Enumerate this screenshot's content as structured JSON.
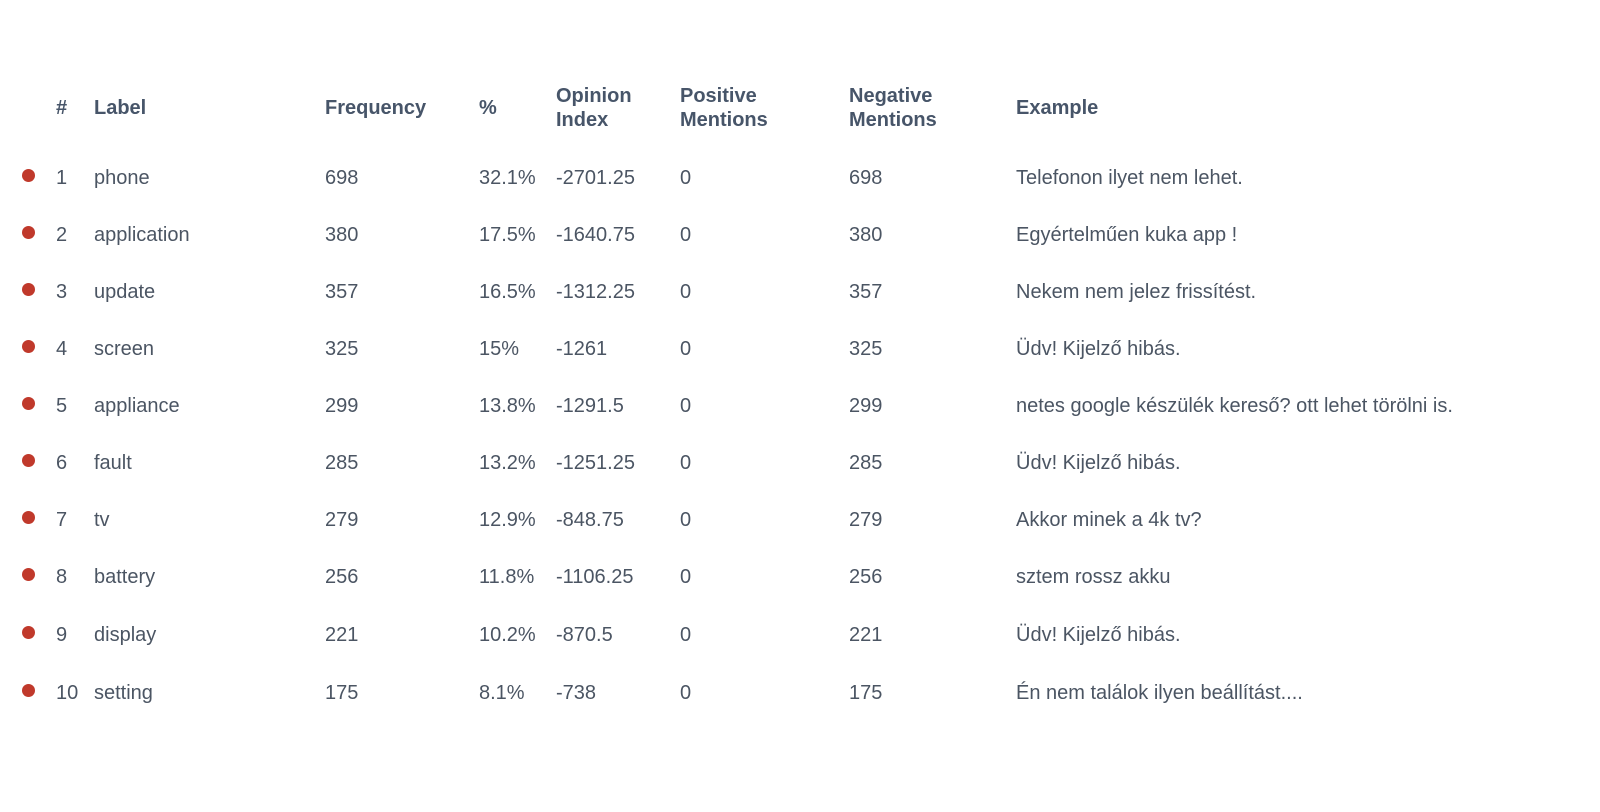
{
  "colors": {
    "sentiment_negative": "#c0392b",
    "text": "#475569"
  },
  "table": {
    "headers": {
      "index": "#",
      "label": "Label",
      "frequency": "Frequency",
      "percent": "%",
      "opinion_index_line1": "Opinion",
      "opinion_index_line2": "Index",
      "positive_line1": "Positive",
      "positive_line2": "Mentions",
      "negative_line1": "Negative",
      "negative_line2": "Mentions",
      "example": "Example"
    },
    "rows": [
      {
        "index": "1",
        "label": "phone",
        "frequency": "698",
        "percent": "32.1%",
        "opinion_index": "-2701.25",
        "positive": "0",
        "negative": "698",
        "example": "Telefonon ilyet nem lehet."
      },
      {
        "index": "2",
        "label": "application",
        "frequency": "380",
        "percent": "17.5%",
        "opinion_index": "-1640.75",
        "positive": "0",
        "negative": "380",
        "example": "Egyértelműen kuka app !"
      },
      {
        "index": "3",
        "label": "update",
        "frequency": "357",
        "percent": "16.5%",
        "opinion_index": "-1312.25",
        "positive": "0",
        "negative": "357",
        "example": "Nekem nem jelez frissítést."
      },
      {
        "index": "4",
        "label": "screen",
        "frequency": "325",
        "percent": "15%",
        "opinion_index": "-1261",
        "positive": "0",
        "negative": "325",
        "example": "Üdv! Kijelző hibás."
      },
      {
        "index": "5",
        "label": "appliance",
        "frequency": "299",
        "percent": "13.8%",
        "opinion_index": "-1291.5",
        "positive": "0",
        "negative": "299",
        "example": "netes google készülék kereső? ott lehet törölni is."
      },
      {
        "index": "6",
        "label": "fault",
        "frequency": "285",
        "percent": "13.2%",
        "opinion_index": "-1251.25",
        "positive": "0",
        "negative": "285",
        "example": "Üdv! Kijelző hibás."
      },
      {
        "index": "7",
        "label": "tv",
        "frequency": "279",
        "percent": "12.9%",
        "opinion_index": "-848.75",
        "positive": "0",
        "negative": "279",
        "example": "Akkor minek a 4k tv?"
      },
      {
        "index": "8",
        "label": "battery",
        "frequency": "256",
        "percent": "11.8%",
        "opinion_index": "-1106.25",
        "positive": "0",
        "negative": "256",
        "example": "sztem rossz akku"
      },
      {
        "index": "9",
        "label": "display",
        "frequency": "221",
        "percent": "10.2%",
        "opinion_index": "-870.5",
        "positive": "0",
        "negative": "221",
        "example": "Üdv! Kijelző hibás."
      },
      {
        "index": "10",
        "label": "setting",
        "frequency": "175",
        "percent": "8.1%",
        "opinion_index": "-738",
        "positive": "0",
        "negative": "175",
        "example": "Én nem találok ilyen beállítást...."
      }
    ]
  }
}
